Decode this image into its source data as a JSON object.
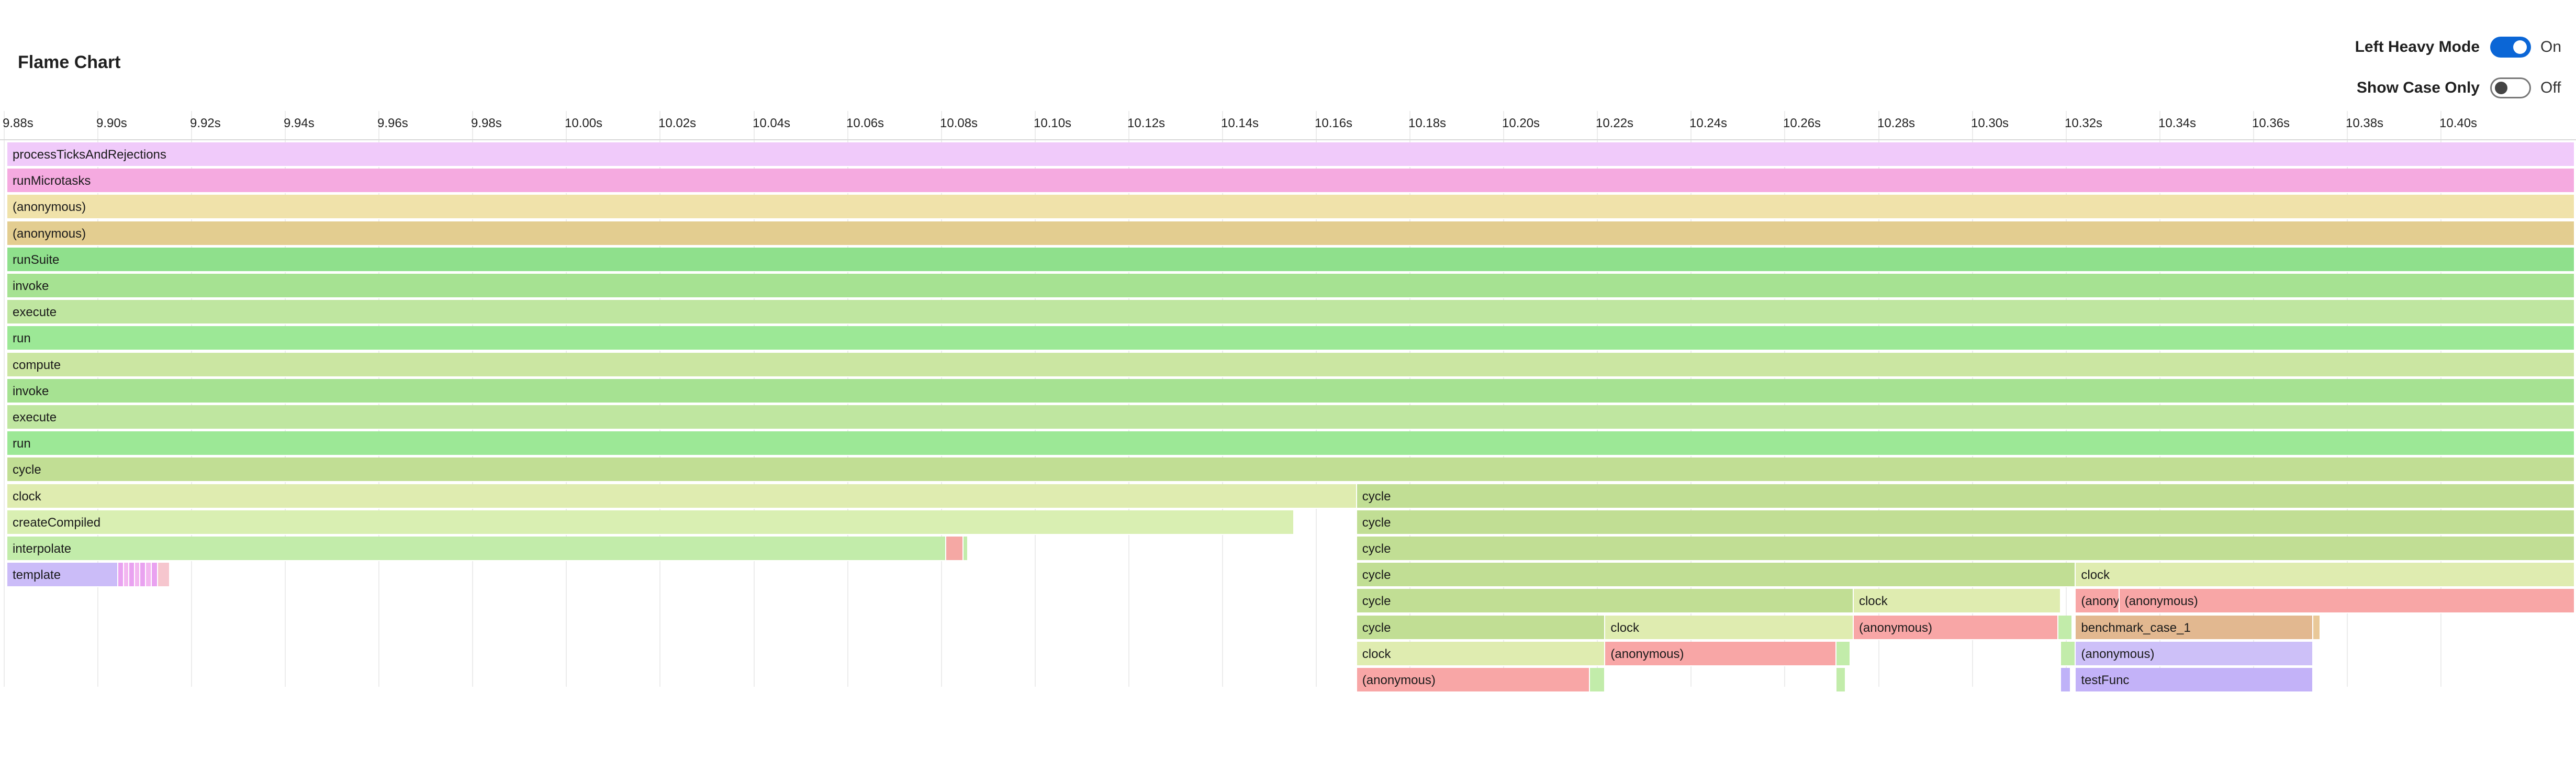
{
  "title": "Flame Chart",
  "controls": {
    "left_heavy": {
      "label": "Left Heavy Mode",
      "state": "On",
      "checked": true
    },
    "show_case": {
      "label": "Show Case Only",
      "state": "Off",
      "checked": false
    }
  },
  "axis": {
    "start": 9.8808,
    "end": 10.4287,
    "ticks": [
      "9.88s",
      "9.90s",
      "9.92s",
      "9.94s",
      "9.96s",
      "9.98s",
      "10.00s",
      "10.02s",
      "10.04s",
      "10.06s",
      "10.08s",
      "10.10s",
      "10.12s",
      "10.14s",
      "10.16s",
      "10.18s",
      "10.20s",
      "10.22s",
      "10.24s",
      "10.26s",
      "10.28s",
      "10.30s",
      "10.32s",
      "10.34s",
      "10.36s",
      "10.38s",
      "10.40s"
    ],
    "tick_values": [
      9.88,
      9.9,
      9.92,
      9.94,
      9.96,
      9.98,
      10.0,
      10.02,
      10.04,
      10.06,
      10.08,
      10.1,
      10.12,
      10.14,
      10.16,
      10.18,
      10.2,
      10.22,
      10.24,
      10.26,
      10.28,
      10.3,
      10.32,
      10.34,
      10.36,
      10.38,
      10.4
    ]
  },
  "frames": [
    {
      "row": 0,
      "start": 9.8808,
      "end": 10.4287,
      "label": "processTicksAndRejections",
      "color": "#f0cafa"
    },
    {
      "row": 1,
      "start": 9.8808,
      "end": 10.4287,
      "label": "runMicrotasks",
      "color": "#f5aae0"
    },
    {
      "row": 2,
      "start": 9.8808,
      "end": 10.4287,
      "label": "(anonymous)",
      "color": "#f0e2aa"
    },
    {
      "row": 3,
      "start": 9.8808,
      "end": 10.4287,
      "label": "(anonymous)",
      "color": "#e3cd90"
    },
    {
      "row": 4,
      "start": 9.8808,
      "end": 10.4287,
      "label": "runSuite",
      "color": "#8fe08c"
    },
    {
      "row": 5,
      "start": 9.8808,
      "end": 10.4287,
      "label": "invoke",
      "color": "#a6e292"
    },
    {
      "row": 6,
      "start": 9.8808,
      "end": 10.4287,
      "label": "execute",
      "color": "#bfe6a0"
    },
    {
      "row": 7,
      "start": 9.8808,
      "end": 10.4287,
      "label": "run",
      "color": "#9ce896"
    },
    {
      "row": 8,
      "start": 9.8808,
      "end": 10.4287,
      "label": "compute",
      "color": "#cbe6a2"
    },
    {
      "row": 9,
      "start": 9.8808,
      "end": 10.4287,
      "label": "invoke",
      "color": "#a6e292"
    },
    {
      "row": 10,
      "start": 9.8808,
      "end": 10.4287,
      "label": "execute",
      "color": "#bfe6a0"
    },
    {
      "row": 11,
      "start": 9.8808,
      "end": 10.4287,
      "label": "run",
      "color": "#9ce896"
    },
    {
      "row": 12,
      "start": 9.8808,
      "end": 10.4287,
      "label": "cycle",
      "color": "#c1de94"
    },
    {
      "row": 13,
      "start": 9.8808,
      "end": 10.1688,
      "label": "clock",
      "color": "#dfecb0"
    },
    {
      "row": 13,
      "start": 10.1688,
      "end": 10.4287,
      "label": "cycle",
      "color": "#c1de94"
    },
    {
      "row": 14,
      "start": 9.8808,
      "end": 10.1554,
      "label": "createCompiled",
      "color": "#d9efb2"
    },
    {
      "row": 14,
      "start": 10.1688,
      "end": 10.4287,
      "label": "cycle",
      "color": "#c1de94"
    },
    {
      "row": 15,
      "start": 9.8808,
      "end": 10.0812,
      "label": "interpolate",
      "color": "#c2ecaa"
    },
    {
      "row": 15,
      "start": 10.0812,
      "end": 10.0848,
      "label": "",
      "color": "#f5a8a4"
    },
    {
      "row": 15,
      "start": 10.0848,
      "end": 10.0858,
      "label": "",
      "color": "#c2ecaa"
    },
    {
      "row": 15,
      "start": 10.1688,
      "end": 10.4287,
      "label": "cycle",
      "color": "#c1de94"
    },
    {
      "row": 16,
      "start": 9.8808,
      "end": 9.9045,
      "label": "template",
      "color": "#cbbcf8"
    },
    {
      "row": 16,
      "start": 9.9045,
      "end": 9.9057,
      "label": "",
      "color": "#e9a2f0"
    },
    {
      "row": 16,
      "start": 9.9057,
      "end": 9.9068,
      "label": "",
      "color": "#f3b6f0"
    },
    {
      "row": 16,
      "start": 9.9068,
      "end": 9.908,
      "label": "",
      "color": "#e9a2f0"
    },
    {
      "row": 16,
      "start": 9.908,
      "end": 9.9092,
      "label": "",
      "color": "#f3b6f0"
    },
    {
      "row": 16,
      "start": 9.9092,
      "end": 9.9104,
      "label": "",
      "color": "#e9a2f0"
    },
    {
      "row": 16,
      "start": 9.9104,
      "end": 9.9116,
      "label": "",
      "color": "#f3b6f0"
    },
    {
      "row": 16,
      "start": 9.9116,
      "end": 9.913,
      "label": "",
      "color": "#e9a2f0"
    },
    {
      "row": 16,
      "start": 9.913,
      "end": 9.9155,
      "label": "",
      "color": "#f6c6ce"
    },
    {
      "row": 16,
      "start": 10.1688,
      "end": 10.3222,
      "label": "cycle",
      "color": "#c1de94"
    },
    {
      "row": 16,
      "start": 10.3222,
      "end": 10.4287,
      "label": "clock",
      "color": "#dfecb0"
    },
    {
      "row": 17,
      "start": 10.1688,
      "end": 10.2748,
      "label": "cycle",
      "color": "#c1de94"
    },
    {
      "row": 17,
      "start": 10.2748,
      "end": 10.319,
      "label": "clock",
      "color": "#dfecb0"
    },
    {
      "row": 17,
      "start": 10.3222,
      "end": 10.3315,
      "label": "(anonymous)",
      "color": "#f8a6a6"
    },
    {
      "row": 17,
      "start": 10.3315,
      "end": 10.4287,
      "label": "(anonymous)",
      "color": "#f8a6a6"
    },
    {
      "row": 18,
      "start": 10.1688,
      "end": 10.2218,
      "label": "cycle",
      "color": "#c1de94"
    },
    {
      "row": 18,
      "start": 10.2218,
      "end": 10.2748,
      "label": "clock",
      "color": "#dfecb0"
    },
    {
      "row": 18,
      "start": 10.2748,
      "end": 10.3185,
      "label": "(anonymous)",
      "color": "#f8a6a6"
    },
    {
      "row": 18,
      "start": 10.3185,
      "end": 10.3215,
      "label": "",
      "color": "#c2ecaa"
    },
    {
      "row": 18,
      "start": 10.3222,
      "end": 10.3729,
      "label": "benchmark_case_1",
      "color": "#e2b890"
    },
    {
      "row": 18,
      "start": 10.3729,
      "end": 10.3744,
      "label": "",
      "color": "#e9c898"
    },
    {
      "row": 19,
      "start": 10.1688,
      "end": 10.2218,
      "label": "clock",
      "color": "#dfecb0"
    },
    {
      "row": 19,
      "start": 10.2218,
      "end": 10.2711,
      "label": "(anonymous)",
      "color": "#f8a6a6"
    },
    {
      "row": 19,
      "start": 10.2711,
      "end": 10.2741,
      "label": "",
      "color": "#c2ecaa"
    },
    {
      "row": 19,
      "start": 10.319,
      "end": 10.3222,
      "label": "",
      "color": "#c2ecaa"
    },
    {
      "row": 19,
      "start": 10.3222,
      "end": 10.3729,
      "label": "(anonymous)",
      "color": "#cdc0f8"
    },
    {
      "row": 20,
      "start": 10.1688,
      "end": 10.2185,
      "label": "(anonymous)",
      "color": "#f8a6a6"
    },
    {
      "row": 20,
      "start": 10.2185,
      "end": 10.2218,
      "label": "",
      "color": "#c2ecaa"
    },
    {
      "row": 20,
      "start": 10.2711,
      "end": 10.2731,
      "label": "",
      "color": "#c2ecaa"
    },
    {
      "row": 20,
      "start": 10.319,
      "end": 10.3211,
      "label": "",
      "color": "#bfb2f8"
    },
    {
      "row": 20,
      "start": 10.3222,
      "end": 10.3729,
      "label": "testFunc",
      "color": "#c3b2f8"
    }
  ]
}
